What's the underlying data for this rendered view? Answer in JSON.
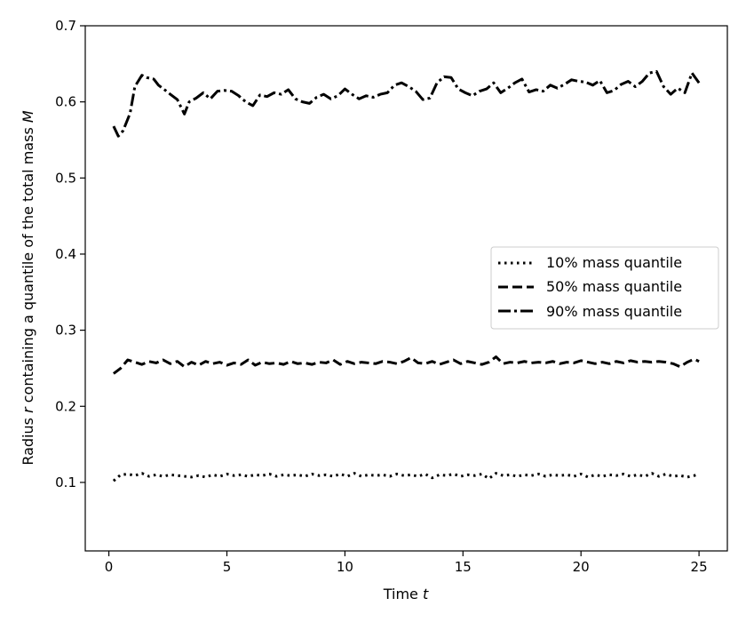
{
  "chart_data": {
    "type": "line",
    "title": "",
    "xlabel": "Time",
    "xlabel_var": "t",
    "ylabel": "Radius",
    "ylabel_var": "r",
    "ylabel_suffix": "containing a quantile of the total mass",
    "ylabel_var2": "M",
    "xlim": [
      -1,
      26.2
    ],
    "ylim": [
      0.01,
      0.7
    ],
    "xticks": [
      0,
      5,
      10,
      15,
      20,
      25
    ],
    "yticks": [
      0.1,
      0.2,
      0.3,
      0.4,
      0.5,
      0.6,
      0.7
    ],
    "grid": false,
    "legend_position": "center-right",
    "series": [
      {
        "name": "10% mass quantile",
        "style": "dotted",
        "color": "#000000",
        "x": [
          0.2,
          0.5,
          0.8,
          1.1,
          1.4,
          1.7,
          2.0,
          2.3,
          2.6,
          2.9,
          3.2,
          3.5,
          3.8,
          4.1,
          4.4,
          4.7,
          5.0,
          5.3,
          5.6,
          5.9,
          6.2,
          6.5,
          6.8,
          7.1,
          7.4,
          7.7,
          8.0,
          8.3,
          8.6,
          8.9,
          9.2,
          9.5,
          9.8,
          10.1,
          10.4,
          10.7,
          11.0,
          11.3,
          11.6,
          11.9,
          12.2,
          12.5,
          12.8,
          13.1,
          13.4,
          13.7,
          14.0,
          14.3,
          14.6,
          14.9,
          15.2,
          15.5,
          15.8,
          16.1,
          16.4,
          16.7,
          17.0,
          17.3,
          17.6,
          17.9,
          18.2,
          18.5,
          18.8,
          19.1,
          19.4,
          19.7,
          20.0,
          20.3,
          20.6,
          20.9,
          21.2,
          21.5,
          21.8,
          22.1,
          22.4,
          22.7,
          23.0,
          23.3,
          23.6,
          23.9,
          24.2,
          24.5,
          24.8,
          25.0
        ],
        "y": [
          0.102,
          0.11,
          0.111,
          0.109,
          0.112,
          0.108,
          0.11,
          0.108,
          0.11,
          0.109,
          0.108,
          0.107,
          0.109,
          0.107,
          0.11,
          0.108,
          0.111,
          0.109,
          0.11,
          0.108,
          0.11,
          0.109,
          0.111,
          0.108,
          0.11,
          0.109,
          0.11,
          0.108,
          0.111,
          0.109,
          0.11,
          0.108,
          0.111,
          0.108,
          0.112,
          0.108,
          0.11,
          0.109,
          0.11,
          0.108,
          0.111,
          0.109,
          0.11,
          0.108,
          0.111,
          0.106,
          0.11,
          0.109,
          0.111,
          0.108,
          0.11,
          0.109,
          0.111,
          0.105,
          0.112,
          0.109,
          0.11,
          0.108,
          0.11,
          0.109,
          0.111,
          0.108,
          0.11,
          0.109,
          0.11,
          0.108,
          0.111,
          0.107,
          0.11,
          0.108,
          0.11,
          0.109,
          0.111,
          0.108,
          0.11,
          0.108,
          0.112,
          0.108,
          0.111,
          0.108,
          0.109,
          0.107,
          0.109,
          0.111
        ]
      },
      {
        "name": "50% mass quantile",
        "style": "dashed",
        "color": "#000000",
        "x": [
          0.2,
          0.5,
          0.8,
          1.1,
          1.4,
          1.7,
          2.0,
          2.3,
          2.6,
          2.9,
          3.2,
          3.5,
          3.8,
          4.1,
          4.4,
          4.7,
          5.0,
          5.3,
          5.6,
          5.9,
          6.2,
          6.5,
          6.8,
          7.1,
          7.4,
          7.7,
          8.0,
          8.3,
          8.6,
          8.9,
          9.2,
          9.5,
          9.8,
          10.1,
          10.4,
          10.7,
          11.0,
          11.3,
          11.6,
          11.9,
          12.2,
          12.5,
          12.8,
          13.1,
          13.4,
          13.7,
          14.0,
          14.3,
          14.6,
          14.9,
          15.2,
          15.5,
          15.8,
          16.1,
          16.4,
          16.7,
          17.0,
          17.3,
          17.6,
          17.9,
          18.2,
          18.5,
          18.8,
          19.1,
          19.4,
          19.7,
          20.0,
          20.3,
          20.6,
          20.9,
          21.2,
          21.5,
          21.8,
          22.1,
          22.4,
          22.7,
          23.0,
          23.3,
          23.6,
          23.9,
          24.2,
          24.5,
          24.8,
          25.0
        ],
        "y": [
          0.243,
          0.25,
          0.261,
          0.258,
          0.255,
          0.259,
          0.257,
          0.261,
          0.256,
          0.259,
          0.252,
          0.258,
          0.254,
          0.259,
          0.256,
          0.258,
          0.254,
          0.257,
          0.255,
          0.261,
          0.254,
          0.258,
          0.256,
          0.257,
          0.255,
          0.259,
          0.256,
          0.257,
          0.255,
          0.258,
          0.257,
          0.261,
          0.255,
          0.259,
          0.256,
          0.258,
          0.257,
          0.256,
          0.259,
          0.258,
          0.256,
          0.259,
          0.264,
          0.257,
          0.256,
          0.259,
          0.255,
          0.258,
          0.261,
          0.256,
          0.259,
          0.257,
          0.255,
          0.258,
          0.265,
          0.256,
          0.258,
          0.257,
          0.259,
          0.257,
          0.258,
          0.257,
          0.259,
          0.256,
          0.258,
          0.257,
          0.26,
          0.258,
          0.256,
          0.258,
          0.256,
          0.259,
          0.257,
          0.26,
          0.258,
          0.259,
          0.258,
          0.259,
          0.258,
          0.256,
          0.252,
          0.258,
          0.262,
          0.259
        ]
      },
      {
        "name": "90% mass quantile",
        "style": "dashdot",
        "color": "#000000",
        "x": [
          0.2,
          0.4,
          0.6,
          0.9,
          1.1,
          1.4,
          1.6,
          1.9,
          2.1,
          2.4,
          2.6,
          2.9,
          3.2,
          3.4,
          3.7,
          4.0,
          4.3,
          4.6,
          4.9,
          5.2,
          5.5,
          5.8,
          6.1,
          6.4,
          6.7,
          7.0,
          7.3,
          7.6,
          7.9,
          8.2,
          8.5,
          8.8,
          9.1,
          9.4,
          9.7,
          10.0,
          10.3,
          10.6,
          10.9,
          11.2,
          11.5,
          11.8,
          12.1,
          12.4,
          12.7,
          13.0,
          13.3,
          13.6,
          13.9,
          14.2,
          14.5,
          14.8,
          15.1,
          15.4,
          15.7,
          16.0,
          16.3,
          16.6,
          16.9,
          17.2,
          17.5,
          17.8,
          18.1,
          18.4,
          18.7,
          19.0,
          19.3,
          19.6,
          19.9,
          20.2,
          20.5,
          20.8,
          21.1,
          21.4,
          21.7,
          22.0,
          22.3,
          22.6,
          22.9,
          23.2,
          23.5,
          23.8,
          24.1,
          24.4,
          24.7,
          25.0
        ],
        "y": [
          0.568,
          0.555,
          0.562,
          0.585,
          0.62,
          0.635,
          0.632,
          0.63,
          0.622,
          0.615,
          0.61,
          0.603,
          0.584,
          0.6,
          0.605,
          0.612,
          0.604,
          0.614,
          0.615,
          0.614,
          0.608,
          0.6,
          0.595,
          0.609,
          0.607,
          0.612,
          0.61,
          0.616,
          0.604,
          0.6,
          0.598,
          0.606,
          0.61,
          0.604,
          0.608,
          0.617,
          0.61,
          0.604,
          0.608,
          0.606,
          0.61,
          0.612,
          0.622,
          0.625,
          0.62,
          0.614,
          0.603,
          0.605,
          0.625,
          0.633,
          0.632,
          0.617,
          0.612,
          0.608,
          0.614,
          0.617,
          0.625,
          0.612,
          0.618,
          0.625,
          0.63,
          0.613,
          0.616,
          0.614,
          0.622,
          0.618,
          0.623,
          0.629,
          0.627,
          0.626,
          0.622,
          0.628,
          0.612,
          0.615,
          0.623,
          0.627,
          0.62,
          0.627,
          0.638,
          0.64,
          0.62,
          0.61,
          0.618,
          0.612,
          0.638,
          0.625
        ]
      }
    ]
  }
}
